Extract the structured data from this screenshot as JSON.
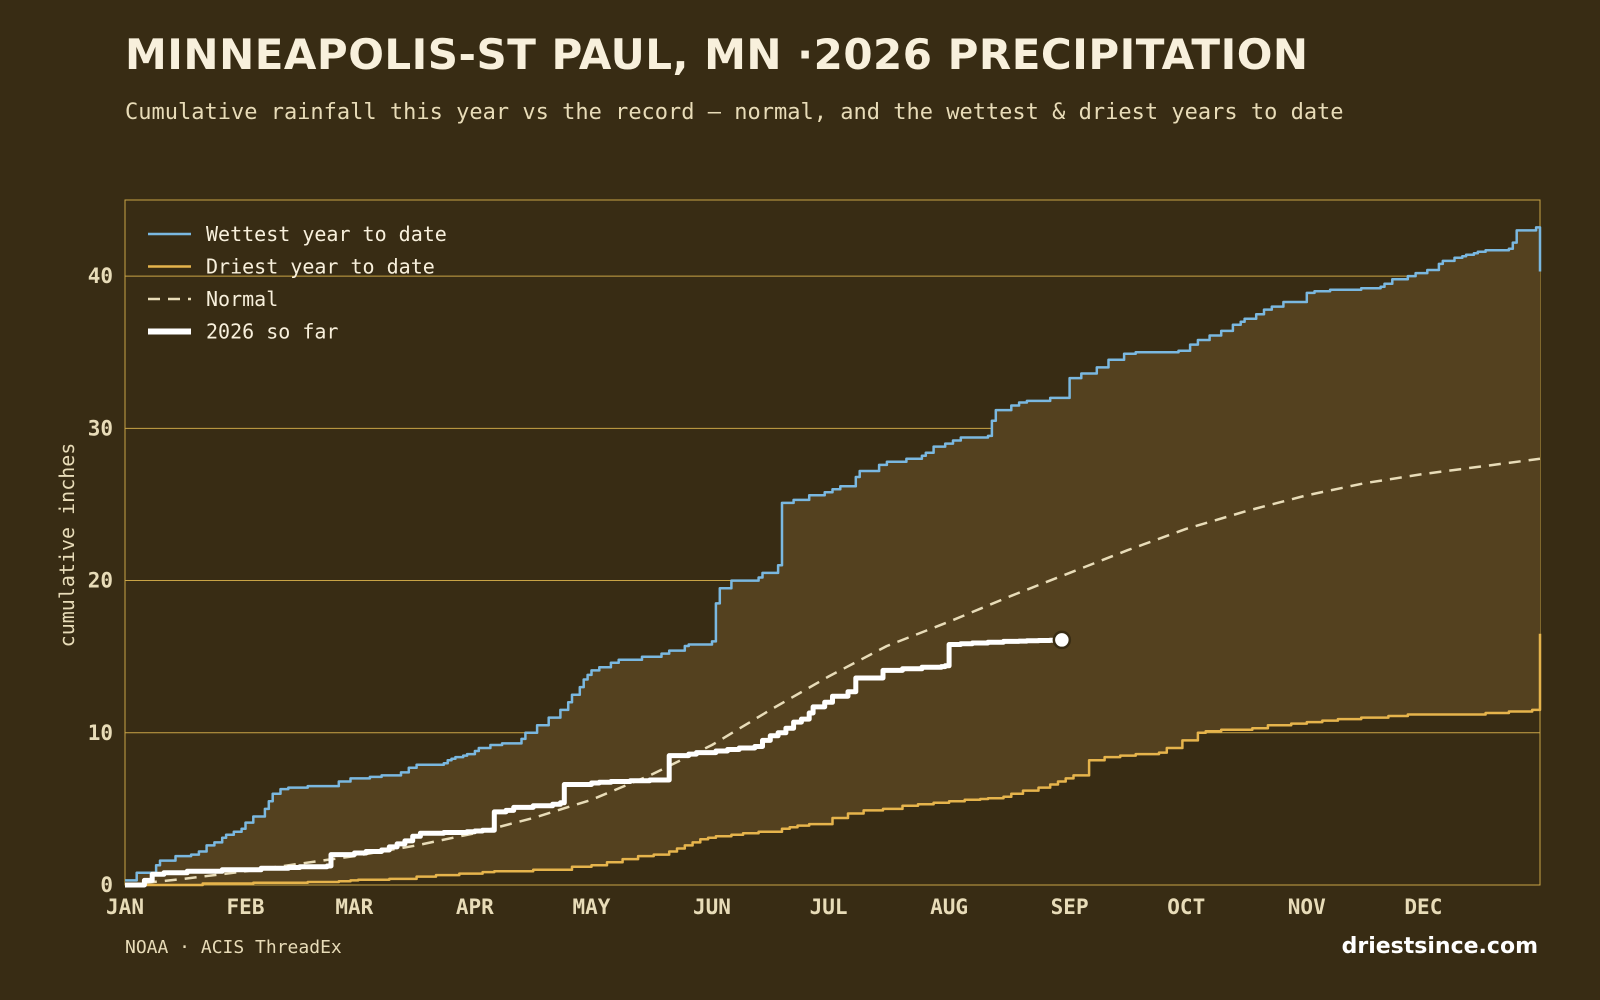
{
  "header": {
    "title": "MINNEAPOLIS-ST PAUL, MN ·2026 PRECIPITATION",
    "subtitle": "Cumulative rainfall this year vs the record — normal, and the wettest & driest years to date"
  },
  "footer": {
    "source": "NOAA · ACIS ThreadEx",
    "brand": "driestsince.com"
  },
  "colors": {
    "background": "#382c14",
    "band_fill": "#54411f",
    "grid": "#c9a446",
    "wettest": "#7ab8e0",
    "driest": "#e6b44c",
    "normal": "#e8dcb8",
    "current": "#ffffff"
  },
  "chart_data": {
    "type": "line",
    "title": "MINNEAPOLIS-ST PAUL, MN ·2026 PRECIPITATION",
    "xlabel": "",
    "ylabel": "cumulative inches",
    "xlim": [
      "Jan 1",
      "Dec 31"
    ],
    "ylim": [
      0,
      45
    ],
    "y_ticks": [
      0,
      10,
      20,
      30,
      40
    ],
    "x_ticks": [
      {
        "label": "JAN",
        "day": 0
      },
      {
        "label": "FEB",
        "day": 31
      },
      {
        "label": "MAR",
        "day": 59
      },
      {
        "label": "APR",
        "day": 90
      },
      {
        "label": "MAY",
        "day": 120
      },
      {
        "label": "JUN",
        "day": 151
      },
      {
        "label": "JUL",
        "day": 181
      },
      {
        "label": "AUG",
        "day": 212
      },
      {
        "label": "SEP",
        "day": 243
      },
      {
        "label": "OCT",
        "day": 273
      },
      {
        "label": "NOV",
        "day": 304
      },
      {
        "label": "DEC",
        "day": 334
      }
    ],
    "grid": true,
    "legend_position": "top-left",
    "series": [
      {
        "name": "Wettest year to date",
        "key": "wettest",
        "style": "step",
        "x": [
          0,
          3,
          8,
          9,
          13,
          17,
          19,
          21,
          23,
          25,
          26,
          28,
          30,
          31,
          33,
          36,
          37,
          38,
          40,
          42,
          47,
          55,
          58,
          63,
          66,
          71,
          73,
          75,
          82,
          83,
          84,
          85,
          87,
          88,
          90,
          91,
          94,
          97,
          102,
          103,
          106,
          109,
          112,
          114,
          115,
          117,
          118,
          119,
          120,
          122,
          125,
          127,
          133,
          138,
          140,
          144,
          145,
          151,
          152,
          153,
          156,
          163,
          164,
          168,
          169,
          172,
          176,
          180,
          182,
          184,
          188,
          189,
          194,
          196,
          201,
          205,
          206,
          208,
          211,
          213,
          215,
          222,
          223,
          224,
          228,
          230,
          232,
          238,
          243,
          246,
          250,
          253,
          257,
          260,
          271,
          274,
          276,
          279,
          282,
          285,
          287,
          288,
          291,
          293,
          295,
          298,
          304,
          306,
          310,
          318,
          323,
          324,
          326,
          330,
          332,
          335,
          338,
          339,
          342,
          344,
          345,
          347,
          348,
          350,
          356,
          357,
          358,
          363,
          364
        ],
        "y": [
          0.3,
          0.8,
          1.3,
          1.6,
          1.9,
          2.0,
          2.2,
          2.6,
          2.8,
          3.1,
          3.3,
          3.5,
          3.7,
          4.1,
          4.5,
          5.0,
          5.5,
          6.0,
          6.3,
          6.4,
          6.5,
          6.8,
          7.0,
          7.1,
          7.2,
          7.4,
          7.7,
          7.9,
          8.0,
          8.2,
          8.3,
          8.4,
          8.5,
          8.6,
          8.8,
          9.0,
          9.2,
          9.3,
          9.6,
          10.0,
          10.5,
          11.0,
          11.5,
          12.0,
          12.5,
          13.0,
          13.5,
          13.8,
          14.1,
          14.3,
          14.6,
          14.8,
          15.0,
          15.2,
          15.4,
          15.7,
          15.8,
          16.0,
          18.5,
          19.5,
          20.0,
          20.2,
          20.5,
          21.0,
          25.1,
          25.3,
          25.6,
          25.8,
          26.0,
          26.2,
          26.8,
          27.2,
          27.6,
          27.8,
          28.0,
          28.2,
          28.4,
          28.8,
          29.0,
          29.2,
          29.4,
          29.5,
          30.5,
          31.2,
          31.5,
          31.7,
          31.8,
          32.0,
          33.3,
          33.6,
          34.0,
          34.5,
          34.9,
          35.0,
          35.1,
          35.5,
          35.8,
          36.1,
          36.4,
          36.8,
          37.0,
          37.2,
          37.5,
          37.8,
          38.0,
          38.3,
          38.9,
          39.0,
          39.1,
          39.2,
          39.3,
          39.5,
          39.8,
          40.0,
          40.2,
          40.4,
          40.8,
          41.0,
          41.2,
          41.3,
          41.4,
          41.5,
          41.6,
          41.7,
          41.8,
          42.2,
          43.0,
          43.2,
          40.3
        ]
      },
      {
        "name": "Driest year to date",
        "key": "driest",
        "style": "step",
        "x": [
          0,
          20,
          33,
          47,
          55,
          58,
          60,
          68,
          75,
          80,
          86,
          92,
          95,
          105,
          115,
          120,
          124,
          128,
          132,
          136,
          140,
          142,
          144,
          146,
          148,
          150,
          152,
          156,
          159,
          163,
          169,
          171,
          173,
          176,
          182,
          186,
          190,
          195,
          200,
          204,
          208,
          212,
          216,
          220,
          222,
          226,
          228,
          231,
          235,
          238,
          240,
          242,
          244,
          248,
          252,
          256,
          260,
          266,
          268,
          272,
          276,
          278,
          282,
          290,
          294,
          300,
          304,
          308,
          312,
          318,
          325,
          330,
          340,
          350,
          356,
          362,
          363,
          364
        ],
        "y": [
          0,
          0.1,
          0.15,
          0.2,
          0.25,
          0.3,
          0.35,
          0.4,
          0.55,
          0.65,
          0.75,
          0.85,
          0.9,
          1.0,
          1.2,
          1.3,
          1.5,
          1.7,
          1.9,
          2.0,
          2.2,
          2.4,
          2.6,
          2.8,
          3.0,
          3.1,
          3.2,
          3.3,
          3.4,
          3.5,
          3.7,
          3.8,
          3.9,
          4.0,
          4.4,
          4.7,
          4.9,
          5.0,
          5.2,
          5.3,
          5.4,
          5.5,
          5.6,
          5.65,
          5.7,
          5.8,
          6.0,
          6.2,
          6.4,
          6.6,
          6.8,
          7.0,
          7.2,
          8.2,
          8.4,
          8.5,
          8.6,
          8.7,
          9.0,
          9.5,
          10.0,
          10.1,
          10.2,
          10.3,
          10.5,
          10.6,
          10.7,
          10.8,
          10.9,
          11.0,
          11.1,
          11.2,
          11.2,
          11.3,
          11.4,
          11.5,
          11.5,
          16.5
        ]
      },
      {
        "name": "Normal",
        "key": "normal",
        "style": "dashed",
        "x": [
          0,
          15,
          31,
          45,
          59,
          75,
          90,
          105,
          120,
          135,
          151,
          166,
          181,
          196,
          212,
          228,
          243,
          258,
          273,
          289,
          304,
          319,
          334,
          349,
          364
        ],
        "y": [
          0,
          0.4,
          0.9,
          1.4,
          1.9,
          2.6,
          3.4,
          4.4,
          5.6,
          7.2,
          9.2,
          11.5,
          13.7,
          15.7,
          17.3,
          19.0,
          20.5,
          22.0,
          23.4,
          24.6,
          25.6,
          26.4,
          27.0,
          27.5,
          28.0
        ]
      },
      {
        "name": "2026 so far",
        "key": "current",
        "style": "step",
        "x": [
          0,
          5,
          7,
          10,
          16,
          25,
          28,
          35,
          42,
          45,
          52,
          53,
          59,
          62,
          66,
          68,
          70,
          72,
          74,
          76,
          82,
          88,
          90,
          92,
          95,
          98,
          100,
          105,
          110,
          112,
          113,
          120,
          122,
          125,
          130,
          135,
          140,
          145,
          147,
          152,
          155,
          158,
          162,
          164,
          166,
          168,
          170,
          172,
          174,
          176,
          177,
          180,
          182,
          186,
          188,
          195,
          200,
          205,
          210,
          211,
          212,
          215,
          218,
          222,
          226,
          230,
          232,
          235,
          238,
          241
        ],
        "y": [
          0,
          0.3,
          0.7,
          0.8,
          0.9,
          1.0,
          1.0,
          1.1,
          1.15,
          1.2,
          1.25,
          2.0,
          2.1,
          2.2,
          2.3,
          2.5,
          2.7,
          2.9,
          3.2,
          3.4,
          3.45,
          3.5,
          3.55,
          3.6,
          4.8,
          4.9,
          5.1,
          5.2,
          5.3,
          5.4,
          6.6,
          6.7,
          6.75,
          6.8,
          6.85,
          6.9,
          8.5,
          8.6,
          8.7,
          8.8,
          8.9,
          9.0,
          9.1,
          9.5,
          9.8,
          10.0,
          10.3,
          10.7,
          10.9,
          11.3,
          11.7,
          12.0,
          12.4,
          12.7,
          13.6,
          14.1,
          14.2,
          14.3,
          14.35,
          14.4,
          15.8,
          15.85,
          15.9,
          15.95,
          16.0,
          16.02,
          16.04,
          16.06,
          16.08,
          16.1
        ]
      }
    ]
  }
}
